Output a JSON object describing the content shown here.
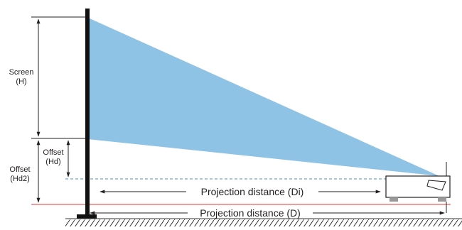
{
  "labels": {
    "screen": "Screen",
    "screen_h": "(H)",
    "offset_hd": "Offset",
    "offset_hd_sub": "(Hd)",
    "offset_hd2": "Offset",
    "offset_hd2_sub": "(Hd2)",
    "distance_di": "Projection distance (Di)",
    "distance_d": "Projection distance (D)"
  },
  "colors": {
    "beam": "#8fc3e6",
    "screen": "#111111",
    "dashed_line": "#4a8fc4",
    "red_line": "#e23a3a",
    "ground": "#333333",
    "projector_foot": "#9a9a9a"
  }
}
